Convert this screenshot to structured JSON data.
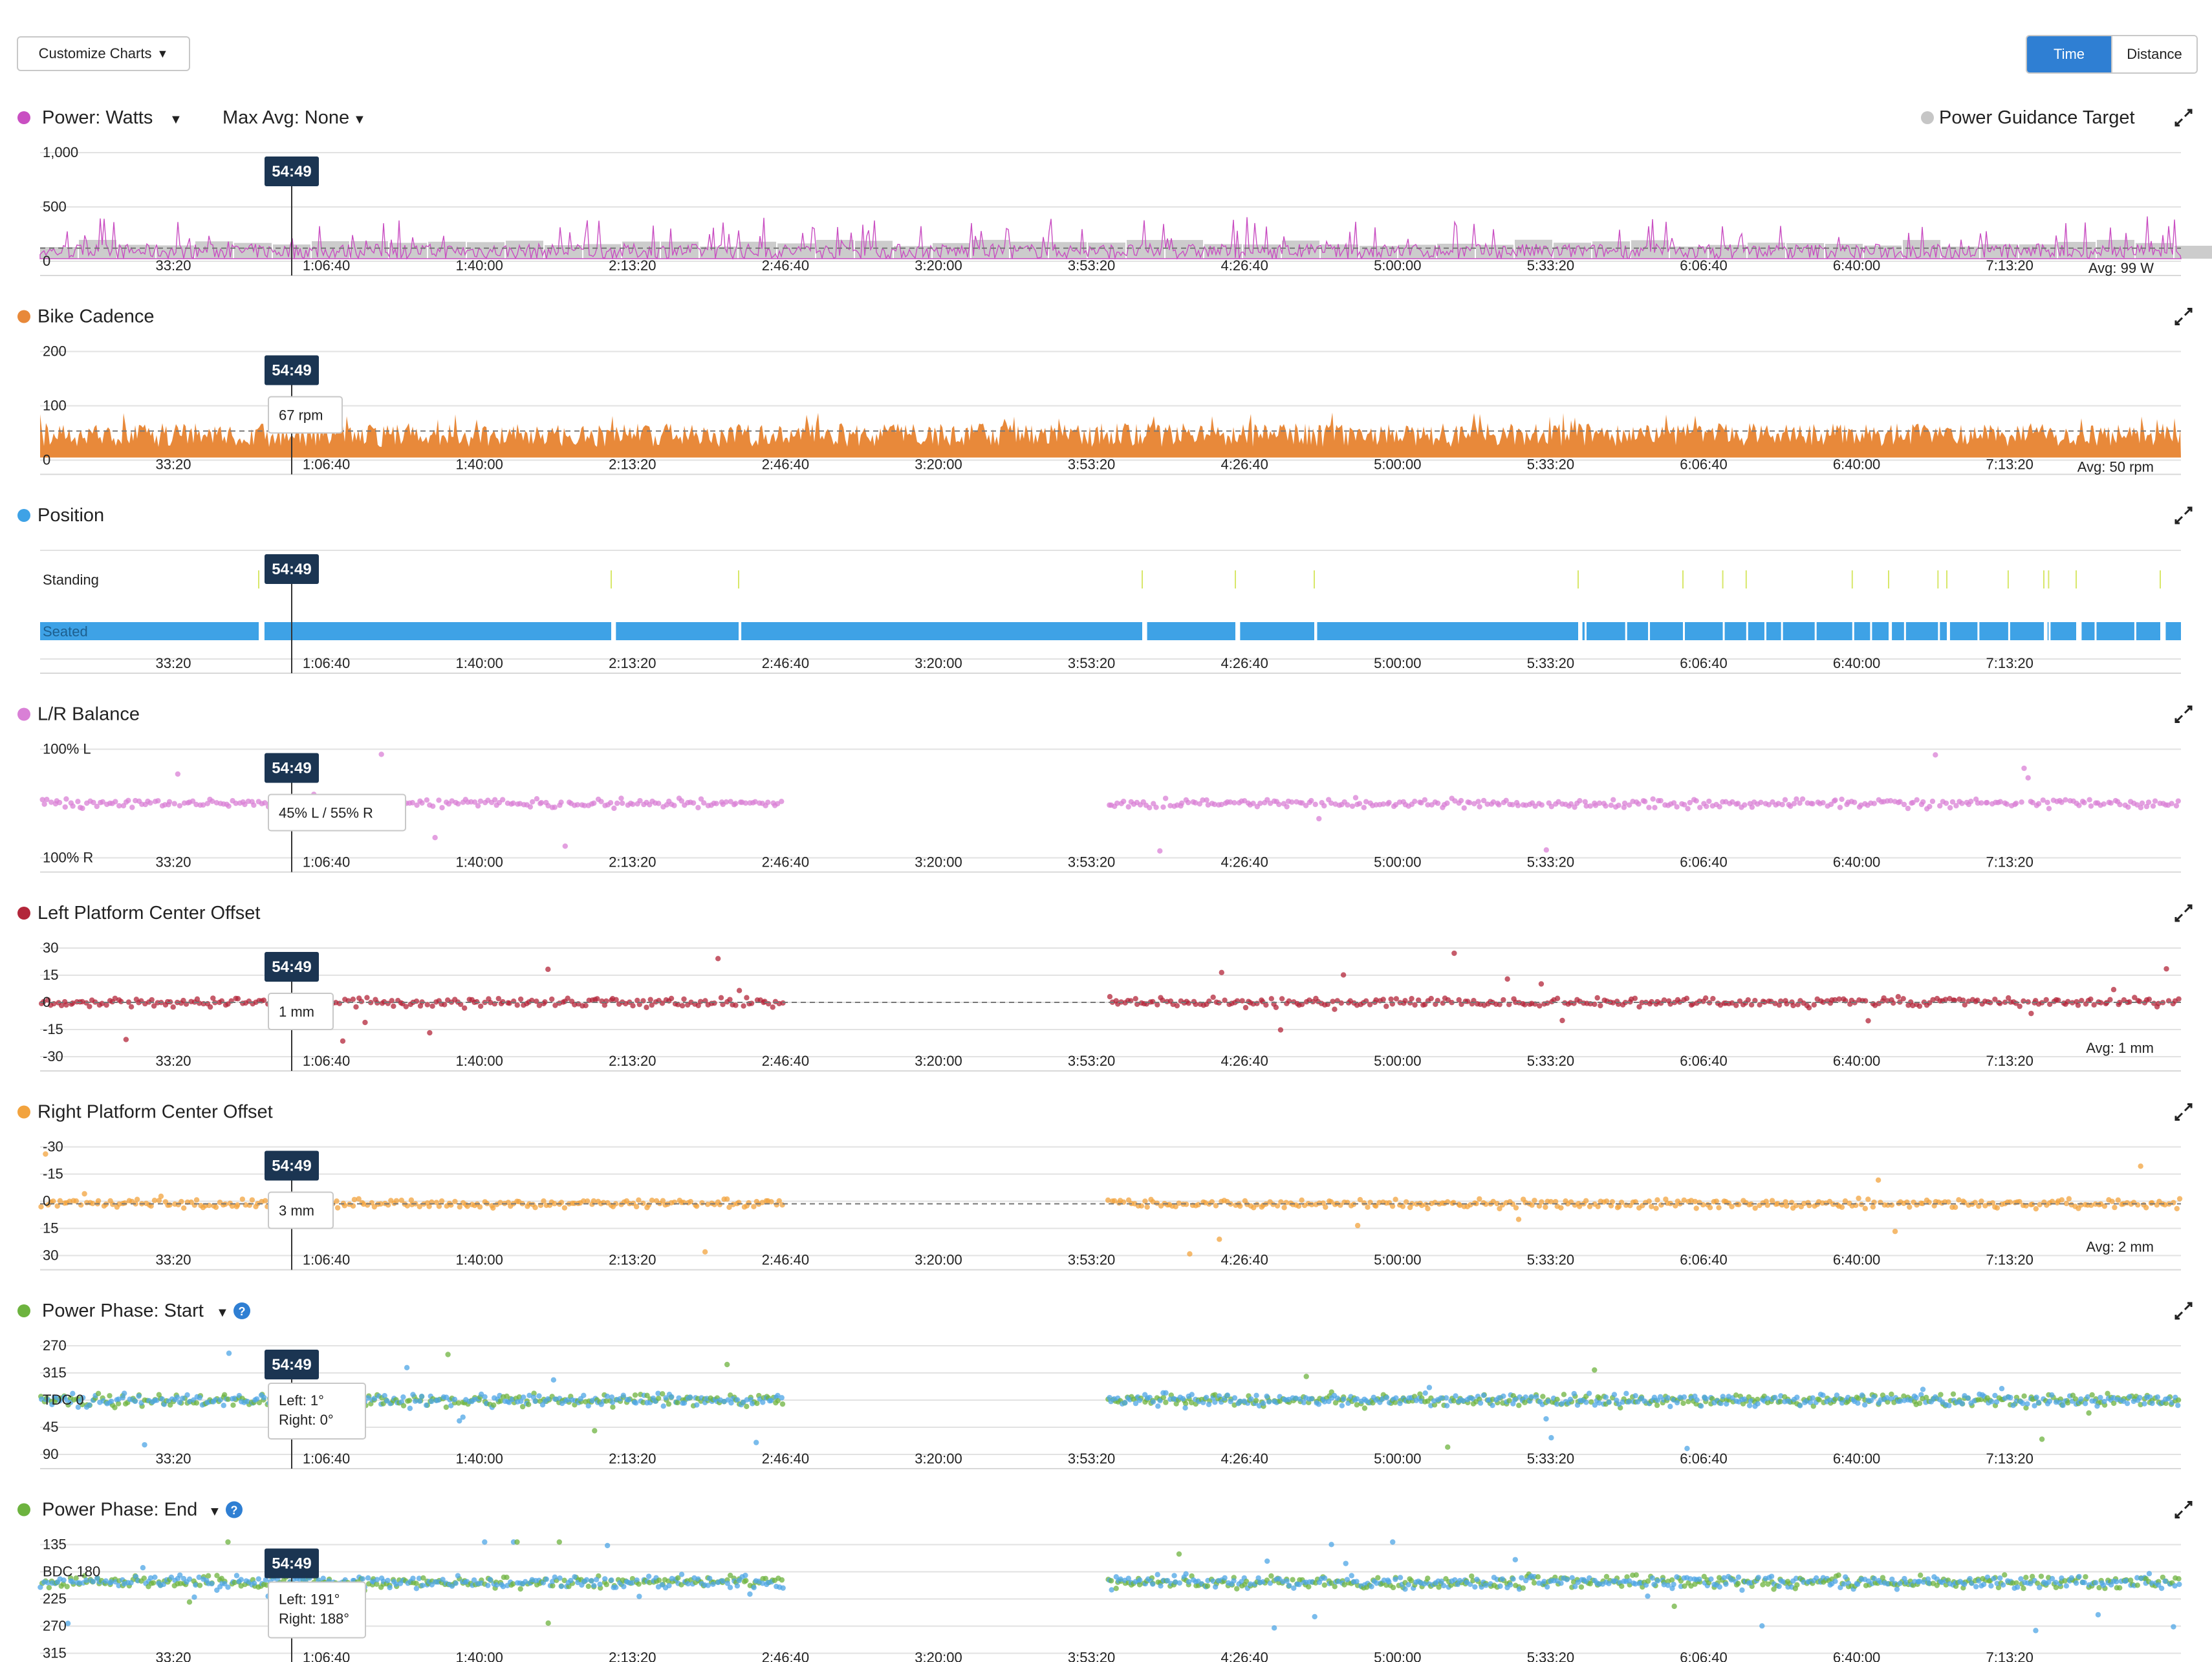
{
  "toolbar": {
    "customize_label": "Customize Charts",
    "time_label": "Time",
    "distance_label": "Distance"
  },
  "colors": {
    "power": "#c94fc2",
    "cadence": "#e8893a",
    "position": "#3ea2e6",
    "balance": "#d980d6",
    "left_pco": "#b3263a",
    "right_pco": "#f2a33e",
    "phase_green": "#6db33f",
    "phase_blue": "#4ea6e6",
    "guidance": "#c6c6c6",
    "tooltip_bg": "#1b3552"
  },
  "cursor_time": "54:49",
  "x_ticks": [
    "33:20",
    "1:06:40",
    "1:40:00",
    "2:13:20",
    "2:46:40",
    "3:20:00",
    "3:53:20",
    "4:26:40",
    "5:00:00",
    "5:33:20",
    "6:06:40",
    "6:40:00",
    "7:13:20"
  ],
  "chart_data": [
    {
      "id": "power",
      "type": "area",
      "title": "Power: Watts",
      "dropdown": "Max Avg: None",
      "legend": "Power Guidance Target",
      "y_ticks": [
        "1,000",
        "500",
        "0"
      ],
      "ylim": [
        0,
        1000
      ],
      "avg": 99,
      "avg_label": "Avg: 99 W",
      "tooltip": ""
    },
    {
      "id": "cadence",
      "type": "area",
      "title": "Bike Cadence",
      "y_ticks": [
        "200",
        "100",
        "0"
      ],
      "ylim": [
        0,
        200
      ],
      "avg": 50,
      "avg_label": "Avg: 50 rpm",
      "tooltip": "67 rpm"
    },
    {
      "id": "position",
      "type": "bar",
      "title": "Position",
      "categories": [
        "Standing",
        "Seated"
      ],
      "tooltip": ""
    },
    {
      "id": "balance",
      "type": "scatter",
      "title": "L/R Balance",
      "y_ticks": [
        "100% L",
        "100% R"
      ],
      "tooltip": "45% L / 55% R"
    },
    {
      "id": "left_pco",
      "type": "scatter",
      "title": "Left Platform Center Offset",
      "y_ticks": [
        "30",
        "15",
        "0",
        "-15",
        "-30"
      ],
      "ylim": [
        -30,
        30
      ],
      "avg": 1,
      "avg_label": "Avg: 1 mm",
      "tooltip": "1 mm"
    },
    {
      "id": "right_pco",
      "type": "scatter",
      "title": "Right Platform Center Offset",
      "y_ticks": [
        "-30",
        "-15",
        "0",
        "15",
        "30"
      ],
      "ylim": [
        -30,
        30
      ],
      "avg": 2,
      "avg_label": "Avg: 2 mm",
      "tooltip": "3 mm"
    },
    {
      "id": "phase_start",
      "type": "scatter",
      "title": "Power Phase: Start",
      "y_ticks": [
        "270",
        "315",
        "TDC 0",
        "45",
        "90"
      ],
      "tooltip_left": "Left: 1°",
      "tooltip_right": "Right: 0°"
    },
    {
      "id": "phase_end",
      "type": "scatter",
      "title": "Power Phase: End",
      "y_ticks": [
        "135",
        "BDC 180",
        "225",
        "270",
        "315"
      ],
      "tooltip_left": "Left: 191°",
      "tooltip_right": "Right: 188°"
    }
  ]
}
